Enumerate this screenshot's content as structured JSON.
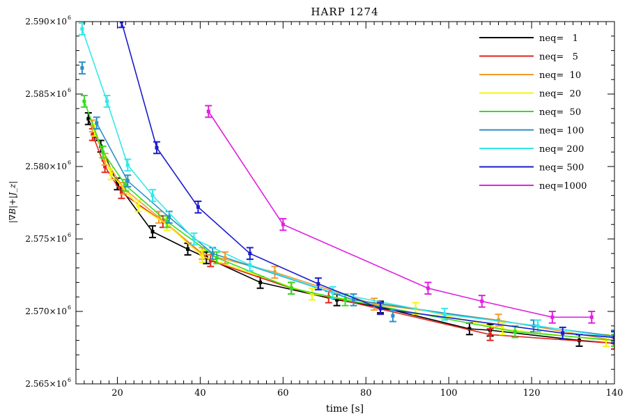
{
  "chart_data": {
    "type": "line",
    "title": "HARP 1274",
    "xlabel": "time [s]",
    "ylabel": "|∇B|+|J_z|",
    "xlim": [
      10,
      140
    ],
    "ylim": [
      2.565,
      2.59
    ],
    "y_exponent": "6",
    "x_ticks": [
      20,
      40,
      60,
      80,
      100,
      120,
      140
    ],
    "x_tick_labels": [
      "20",
      "40",
      "60",
      "80",
      "100",
      "120",
      "140"
    ],
    "y_ticks": [
      2.565,
      2.57,
      2.575,
      2.58,
      2.585,
      2.59
    ],
    "y_tick_labels": [
      "2.565×10",
      "2.570×10",
      "2.575×10",
      "2.580×10",
      "2.585×10",
      "2.590×10"
    ],
    "legend_position": "top-right",
    "grid": false,
    "series": [
      {
        "name": "neq=   1",
        "color": "#000000",
        "x": [
          13.0,
          14.5,
          16.0,
          20.0,
          28.5,
          37.0,
          41.5,
          54.5,
          73.0,
          83.5,
          105.0,
          110.0,
          131.5,
          140.0
        ],
        "y": [
          2.5833,
          2.5822,
          2.5814,
          2.5788,
          2.5755,
          2.5743,
          2.5737,
          2.572,
          2.5708,
          2.5703,
          2.5688,
          2.5687,
          2.568,
          2.5678
        ],
        "err": 0.0004
      },
      {
        "name": "neq=   5",
        "color": "#e3231c",
        "x": [
          14.0,
          17.0,
          21.0,
          31.0,
          42.5,
          62.0,
          71.0,
          110.0,
          140.0
        ],
        "y": [
          2.5822,
          2.58,
          2.5782,
          2.5762,
          2.5735,
          2.5716,
          2.571,
          2.5684,
          2.5678
        ],
        "err": 0.0004
      },
      {
        "name": "neq=  10",
        "color": "#f29b2c",
        "x": [
          14.0,
          17.0,
          21.5,
          30.0,
          40.5,
          58.0,
          82.0,
          112.0,
          140.0
        ],
        "y": [
          2.5828,
          2.5805,
          2.5785,
          2.5765,
          2.574,
          2.5727,
          2.5705,
          2.5694,
          2.568
        ],
        "err": 0.0004
      },
      {
        "name": "neq=  20",
        "color": "#f5f50a",
        "x": [
          14.5,
          18.5,
          25.0,
          32.0,
          40.5,
          67.0,
          92.0,
          113.0,
          138.0
        ],
        "y": [
          2.5825,
          2.5795,
          2.5773,
          2.576,
          2.5738,
          2.5712,
          2.5702,
          2.5688,
          2.568
        ],
        "err": 0.0004
      },
      {
        "name": "neq=  50",
        "color": "#33dd22",
        "x": [
          12.0,
          16.5,
          22.0,
          32.0,
          44.0,
          62.0,
          75.0,
          116.0,
          140.0
        ],
        "y": [
          2.5845,
          2.581,
          2.5787,
          2.5762,
          2.5737,
          2.5716,
          2.5708,
          2.5686,
          2.568
        ],
        "err": 0.0004
      },
      {
        "name": "neq= 100",
        "color": "#2a8fc8",
        "x": [
          15.0,
          22.5,
          32.5,
          43.0,
          77.0,
          120.5,
          140.0
        ],
        "y": [
          2.583,
          2.579,
          2.5765,
          2.574,
          2.5708,
          2.569,
          2.5683
        ],
        "err": 0.0004
      },
      {
        "name": "neq= 200",
        "color": "#33e8e8",
        "x": [
          11.5,
          17.5,
          22.5,
          28.5,
          38.5,
          52.0,
          72.0,
          99.0,
          121.5,
          140.0
        ],
        "y": [
          2.5895,
          2.5845,
          2.5801,
          2.578,
          2.575,
          2.5732,
          2.5713,
          2.5698,
          2.569,
          2.5682
        ],
        "err": 0.0004
      },
      {
        "name": "neq= 500",
        "color": "#1b1bcc",
        "x": [
          21.0,
          29.5,
          39.5,
          52.0,
          68.5,
          83.5,
          127.5,
          140.0
        ],
        "y": [
          2.59,
          2.5813,
          2.5772,
          2.574,
          2.5719,
          2.5702,
          2.5685,
          2.5682
        ],
        "err": 0.0004
      },
      {
        "name": "neq=1000",
        "color": "#e020e0",
        "x": [
          42.0,
          60.0,
          95.0,
          108.0,
          125.0,
          134.5
        ],
        "y": [
          2.5838,
          2.576,
          2.5716,
          2.5707,
          2.5696,
          2.5696
        ],
        "err": 0.0004
      }
    ],
    "error_markers": [
      {
        "color": "#2a8fc8",
        "x": 11.5,
        "y": 2.5868
      },
      {
        "color": "#2a8fc8",
        "x": 86.5,
        "y": 2.5697
      },
      {
        "color": "#f29b2c",
        "x": 46.0,
        "y": 2.5737
      }
    ]
  }
}
